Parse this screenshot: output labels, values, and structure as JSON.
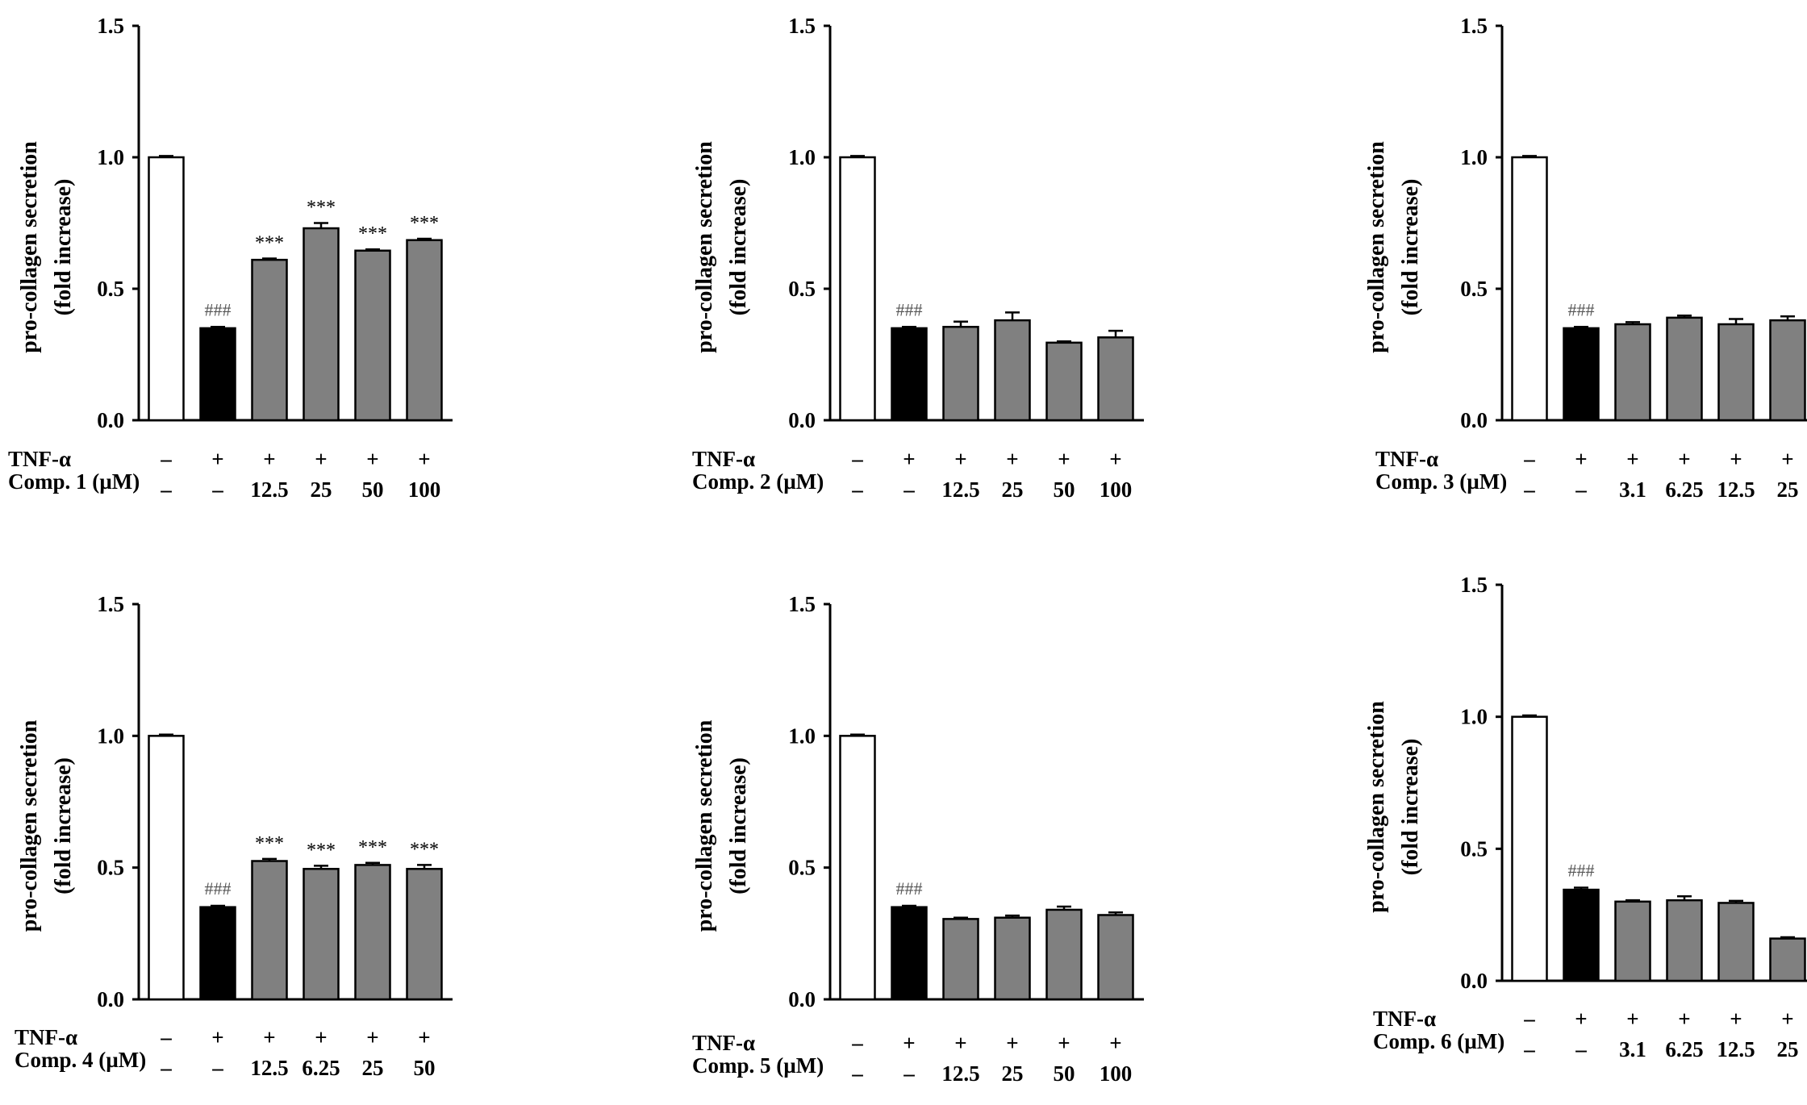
{
  "colors": {
    "control": "#ffffff",
    "tnf": "#000000",
    "treated": "#808080",
    "axis": "#000000"
  },
  "chart_data": [
    {
      "type": "bar",
      "ylabel": [
        "pro-collagen  secretion",
        "(fold increase)"
      ],
      "ylim": [
        0,
        1.5
      ],
      "yticks": [
        "0.0",
        "0.5",
        "1.0",
        "1.5"
      ],
      "tnf_label": "TNF-α",
      "comp_label": "Comp. 1 (µM)",
      "tnf_row": [
        "–",
        "+",
        "+",
        "+",
        "+",
        "+"
      ],
      "conc_row": [
        "–",
        "–",
        "12.5",
        "25",
        "50",
        "100"
      ],
      "values": [
        1.0,
        0.35,
        0.61,
        0.73,
        0.645,
        0.685
      ],
      "errors": [
        0.005,
        0.005,
        0.005,
        0.02,
        0.005,
        0.005
      ],
      "annotations": [
        "",
        "###",
        "***",
        "***",
        "***",
        "***"
      ]
    },
    {
      "type": "bar",
      "ylabel": [
        "pro-collagen secretion",
        "(fold increase)"
      ],
      "ylim": [
        0,
        1.5
      ],
      "yticks": [
        "0.0",
        "0.5",
        "1.0",
        "1.5"
      ],
      "tnf_label": "TNF-α",
      "comp_label": "Comp. 2 (µM)",
      "tnf_row": [
        "–",
        "+",
        "+",
        "+",
        "+",
        "+"
      ],
      "conc_row": [
        "–",
        "–",
        "12.5",
        "25",
        "50",
        "100"
      ],
      "values": [
        1.0,
        0.35,
        0.355,
        0.38,
        0.295,
        0.315
      ],
      "errors": [
        0.005,
        0.005,
        0.02,
        0.03,
        0.005,
        0.025
      ],
      "annotations": [
        "",
        "###",
        "",
        "",
        "",
        ""
      ]
    },
    {
      "type": "bar",
      "ylabel": [
        "pro-collagen secretion",
        "(fold increase)"
      ],
      "ylim": [
        0,
        1.5
      ],
      "yticks": [
        "0.0",
        "0.5",
        "1.0",
        "1.5"
      ],
      "tnf_label": "TNF-α",
      "comp_label": "Comp. 3 (µM)",
      "tnf_row": [
        "–",
        "+",
        "+",
        "+",
        "+",
        "+"
      ],
      "conc_row": [
        "–",
        "–",
        "3.1",
        "6.25",
        "12.5",
        "25"
      ],
      "values": [
        1.0,
        0.35,
        0.365,
        0.39,
        0.365,
        0.38
      ],
      "errors": [
        0.005,
        0.005,
        0.008,
        0.008,
        0.02,
        0.015
      ],
      "annotations": [
        "",
        "###",
        "",
        "",
        "",
        ""
      ]
    },
    {
      "type": "bar",
      "ylabel": [
        "pro-collagen  secretion",
        "(fold increase)"
      ],
      "ylim": [
        0,
        1.5
      ],
      "yticks": [
        "0.0",
        "0.5",
        "1.0",
        "1.5"
      ],
      "tnf_label": "TNF-α",
      "comp_label": "Comp. 4 (µM)",
      "tnf_row": [
        "–",
        "+",
        "+",
        "+",
        "+",
        "+"
      ],
      "conc_row": [
        "–",
        "–",
        "12.5",
        "6.25",
        "25",
        "50"
      ],
      "values": [
        1.0,
        0.35,
        0.525,
        0.495,
        0.51,
        0.495
      ],
      "errors": [
        0.005,
        0.005,
        0.008,
        0.012,
        0.008,
        0.015
      ],
      "annotations": [
        "",
        "###",
        "***",
        "***",
        "***",
        "***"
      ]
    },
    {
      "type": "bar",
      "ylabel": [
        "pro-collagen secretion",
        "(fold increase)"
      ],
      "ylim": [
        0,
        1.5
      ],
      "yticks": [
        "0.0",
        "0.5",
        "1.0",
        "1.5"
      ],
      "tnf_label": "TNF-α",
      "comp_label": "Comp. 5 (µM)",
      "tnf_row": [
        "–",
        "+",
        "+",
        "+",
        "+",
        "+"
      ],
      "conc_row": [
        "–",
        "–",
        "12.5",
        "25",
        "50",
        "100"
      ],
      "values": [
        1.0,
        0.35,
        0.305,
        0.31,
        0.34,
        0.32
      ],
      "errors": [
        0.005,
        0.005,
        0.005,
        0.008,
        0.012,
        0.01
      ],
      "annotations": [
        "",
        "###",
        "",
        "",
        "",
        ""
      ]
    },
    {
      "type": "bar",
      "ylabel": [
        "pro-collagen secretion",
        "(fold increase)"
      ],
      "ylim": [
        0,
        1.5
      ],
      "yticks": [
        "0.0",
        "0.5",
        "1.0",
        "1.5"
      ],
      "tnf_label": "TNF-α",
      "comp_label": "Comp. 6 (µM)",
      "tnf_row": [
        "–",
        "+",
        "+",
        "+",
        "+",
        "+"
      ],
      "conc_row": [
        "–",
        "–",
        "3.1",
        "6.25",
        "12.5",
        "25"
      ],
      "values": [
        1.0,
        0.345,
        0.3,
        0.305,
        0.295,
        0.16
      ],
      "errors": [
        0.005,
        0.008,
        0.005,
        0.015,
        0.008,
        0.005
      ],
      "annotations": [
        "",
        "###",
        "",
        "",
        "",
        ""
      ]
    }
  ]
}
